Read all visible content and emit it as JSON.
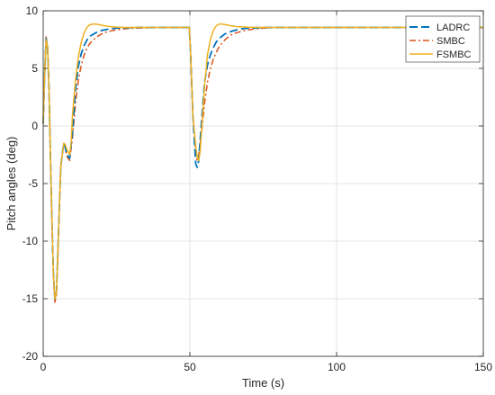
{
  "chart_data": {
    "type": "line",
    "xlabel": "Time (s)",
    "ylabel": "Pitch angles (deg)",
    "xlim": [
      0,
      150
    ],
    "ylim": [
      -20,
      10
    ],
    "xticks": [
      0,
      50,
      100,
      150
    ],
    "yticks": [
      10,
      5,
      0,
      -5,
      -10,
      -15,
      -20
    ],
    "xtick_labels": [
      "0",
      "50",
      "100",
      "150"
    ],
    "ytick_labels": [
      "10",
      "5",
      "0",
      "-5",
      "-10",
      "-15",
      "-20"
    ],
    "grid": true,
    "legend_position": "top-right",
    "series": [
      {
        "name": "LADRC",
        "color": "#0072BD",
        "dash": "dashed",
        "x": [
          0,
          0.5,
          1,
          1.5,
          2,
          2.5,
          3,
          3.5,
          4,
          4.5,
          5,
          5.5,
          6,
          7,
          7.5,
          8,
          9,
          10,
          11,
          12,
          13,
          14,
          15,
          16,
          18,
          20,
          22,
          25,
          28,
          32,
          36,
          40,
          45,
          49.8,
          50.3,
          51,
          52,
          52.5,
          53,
          54,
          55,
          56,
          57,
          58,
          59,
          60,
          62,
          64,
          66,
          68,
          70,
          72,
          75,
          80,
          85,
          90,
          100,
          110,
          120,
          130,
          140,
          150
        ],
        "y": [
          0.2,
          4.5,
          7.6,
          6.8,
          3.0,
          -3.0,
          -8.5,
          -13.0,
          -15.0,
          -14.5,
          -11.0,
          -7.0,
          -3.5,
          -1.5,
          -1.8,
          -2.5,
          -2.8,
          -0.5,
          3.2,
          5.2,
          6.3,
          7.0,
          7.5,
          7.8,
          8.1,
          8.3,
          8.4,
          8.5,
          8.52,
          8.55,
          8.55,
          8.55,
          8.55,
          8.55,
          6.0,
          1.0,
          -3.3,
          -3.6,
          -3.0,
          0.5,
          3.8,
          5.3,
          6.2,
          6.8,
          7.3,
          7.6,
          8.0,
          8.2,
          8.35,
          8.45,
          8.5,
          8.52,
          8.55,
          8.55,
          8.55,
          8.55,
          8.55,
          8.55,
          8.55,
          8.55,
          8.55,
          8.55
        ]
      },
      {
        "name": "SMBC",
        "color": "#D95319",
        "dash": "dashdot",
        "x": [
          0,
          0.5,
          1,
          1.5,
          2,
          2.5,
          3,
          3.5,
          4,
          4.5,
          5,
          5.5,
          6,
          7,
          7.5,
          8,
          9,
          10,
          11,
          12,
          13,
          14,
          15,
          16,
          18,
          20,
          22,
          25,
          28,
          32,
          36,
          40,
          45,
          49.8,
          50.3,
          51,
          52,
          52.5,
          53,
          54,
          55,
          56,
          57,
          58,
          59,
          60,
          62,
          64,
          66,
          68,
          70,
          72,
          75,
          80,
          85,
          90,
          100,
          110,
          120,
          130,
          140,
          150
        ],
        "y": [
          0.2,
          4.5,
          7.8,
          6.8,
          3.0,
          -3.0,
          -8.5,
          -13.2,
          -15.3,
          -14.7,
          -11.2,
          -7.0,
          -3.5,
          -1.5,
          -1.9,
          -2.6,
          -3.0,
          -1.0,
          2.0,
          4.0,
          5.3,
          6.2,
          6.8,
          7.2,
          7.7,
          8.0,
          8.2,
          8.35,
          8.45,
          8.5,
          8.52,
          8.55,
          8.55,
          8.55,
          6.0,
          1.0,
          -2.5,
          -3.0,
          -2.6,
          -0.5,
          2.0,
          3.8,
          5.0,
          5.8,
          6.4,
          6.9,
          7.5,
          7.9,
          8.1,
          8.25,
          8.35,
          8.42,
          8.5,
          8.55,
          8.55,
          8.55,
          8.55,
          8.55,
          8.55,
          8.55,
          8.55,
          8.55
        ]
      },
      {
        "name": "FSMBC",
        "color": "#EDB120",
        "dash": "solid",
        "x": [
          0,
          0.5,
          1,
          1.5,
          2,
          2.5,
          3,
          3.5,
          4,
          4.5,
          5,
          5.5,
          6,
          7,
          7.5,
          8,
          9,
          9.5,
          10,
          11,
          12,
          13,
          14,
          15,
          16,
          17,
          18,
          20,
          22,
          25,
          28,
          32,
          36,
          40,
          45,
          49.8,
          50.3,
          51,
          52,
          52.5,
          53,
          53.5,
          54,
          55,
          56,
          57,
          58,
          59,
          60,
          61,
          62,
          64,
          66,
          70,
          75,
          80,
          85,
          90,
          100,
          110,
          120,
          130,
          140,
          150
        ],
        "y": [
          0.2,
          4.5,
          7.5,
          6.8,
          3.0,
          -3.0,
          -8.5,
          -13.0,
          -15.0,
          -14.5,
          -11.0,
          -7.0,
          -3.5,
          -1.5,
          -1.6,
          -2.0,
          -2.5,
          -1.5,
          1.0,
          4.0,
          6.0,
          7.3,
          8.1,
          8.6,
          8.8,
          8.85,
          8.85,
          8.75,
          8.65,
          8.58,
          8.55,
          8.55,
          8.55,
          8.55,
          8.55,
          8.55,
          6.0,
          1.0,
          -1.8,
          -2.7,
          -3.0,
          -2.2,
          -0.3,
          3.5,
          6.2,
          7.5,
          8.3,
          8.7,
          8.85,
          8.85,
          8.8,
          8.7,
          8.62,
          8.57,
          8.55,
          8.55,
          8.55,
          8.55,
          8.55,
          8.55,
          8.55,
          8.55,
          8.55,
          8.55
        ]
      }
    ]
  }
}
